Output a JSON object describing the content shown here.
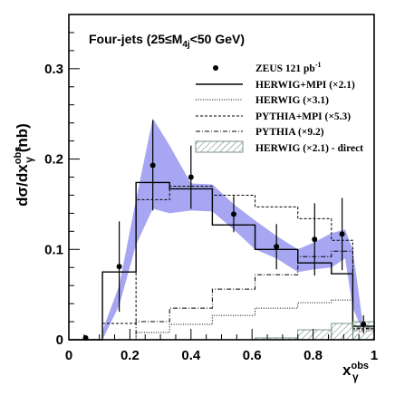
{
  "chart_data": {
    "type": "line",
    "title": "Four-jets (25≤M",
    "title_sub": "4j",
    "title_tail": "<50 GeV)",
    "ylabel": {
      "main": "dσ/dx",
      "sup": "obs",
      "sub": "γ",
      "unit": " (nb)"
    },
    "xlabel": {
      "main": "x",
      "sup": "obs",
      "sub": "γ"
    },
    "xlim": [
      0,
      1
    ],
    "ylim": [
      0,
      0.36
    ],
    "xticks": [
      "0",
      "0.2",
      "0.4",
      "0.6",
      "0.8",
      "1"
    ],
    "xtick_values": [
      0,
      0.2,
      0.4,
      0.6,
      0.8,
      1
    ],
    "yticks": [
      "0",
      "0.1",
      "0.2",
      "0.3"
    ],
    "ytick_values": [
      0,
      0.1,
      0.2,
      0.3
    ],
    "legend_position": "top-right",
    "bin_edges": [
      0.0,
      0.11,
      0.22,
      0.33,
      0.47,
      0.61,
      0.75,
      0.86,
      0.93,
      1.0
    ],
    "data": {
      "name": "ZEUS 121 pb",
      "name_sup": "-1",
      "x": [
        0.055,
        0.165,
        0.275,
        0.4,
        0.54,
        0.68,
        0.805,
        0.895,
        0.965
      ],
      "y": [
        0.002,
        0.081,
        0.193,
        0.18,
        0.139,
        0.103,
        0.111,
        0.117,
        0.017
      ],
      "err": [
        0.002,
        0.05,
        0.05,
        0.035,
        0.02,
        0.025,
        0.04,
        0.04,
        0.01
      ]
    },
    "series": [
      {
        "name": "HERWIG+MPI (×2.1)",
        "style": "solid",
        "values": [
          0.0,
          0.075,
          0.174,
          0.167,
          0.127,
          0.1,
          0.085,
          0.073,
          0.015
        ]
      },
      {
        "name": "HERWIG (×3.1)",
        "style": "dotted",
        "values": [
          0.0,
          0.0,
          0.008,
          0.017,
          0.027,
          0.035,
          0.041,
          0.044,
          0.01
        ]
      },
      {
        "name": "PYTHIA+MPI (×5.3)",
        "style": "dashed",
        "values": [
          0.0,
          0.018,
          0.155,
          0.17,
          0.16,
          0.147,
          0.134,
          0.11,
          0.012
        ]
      },
      {
        "name": "PYTHIA (×9.2)",
        "style": "dashdot",
        "values": [
          0.0,
          0.0,
          0.02,
          0.035,
          0.056,
          0.072,
          0.092,
          0.098,
          0.013
        ]
      },
      {
        "name": "HERWIG (×2.1) - direct",
        "style": "hatched",
        "values": [
          0.0,
          0.0,
          0.0,
          0.0,
          0.0,
          0.002,
          0.011,
          0.018,
          0.02
        ]
      }
    ],
    "band": {
      "x": [
        0.11,
        0.165,
        0.22,
        0.275,
        0.33,
        0.4,
        0.47,
        0.54,
        0.61,
        0.68,
        0.75,
        0.805,
        0.86,
        0.905,
        0.93,
        0.96
      ],
      "low": [
        0.0,
        0.038,
        0.105,
        0.145,
        0.14,
        0.143,
        0.142,
        0.122,
        0.1,
        0.09,
        0.075,
        0.078,
        0.08,
        0.09,
        0.035,
        0.012
      ],
      "high": [
        0.01,
        0.06,
        0.155,
        0.245,
        0.215,
        0.173,
        0.172,
        0.15,
        0.132,
        0.115,
        0.1,
        0.108,
        0.118,
        0.122,
        0.1,
        0.025
      ]
    },
    "colors": {
      "band": "#a6a6f2",
      "hatch": "#5b7c6a",
      "axis": "#000000"
    }
  }
}
